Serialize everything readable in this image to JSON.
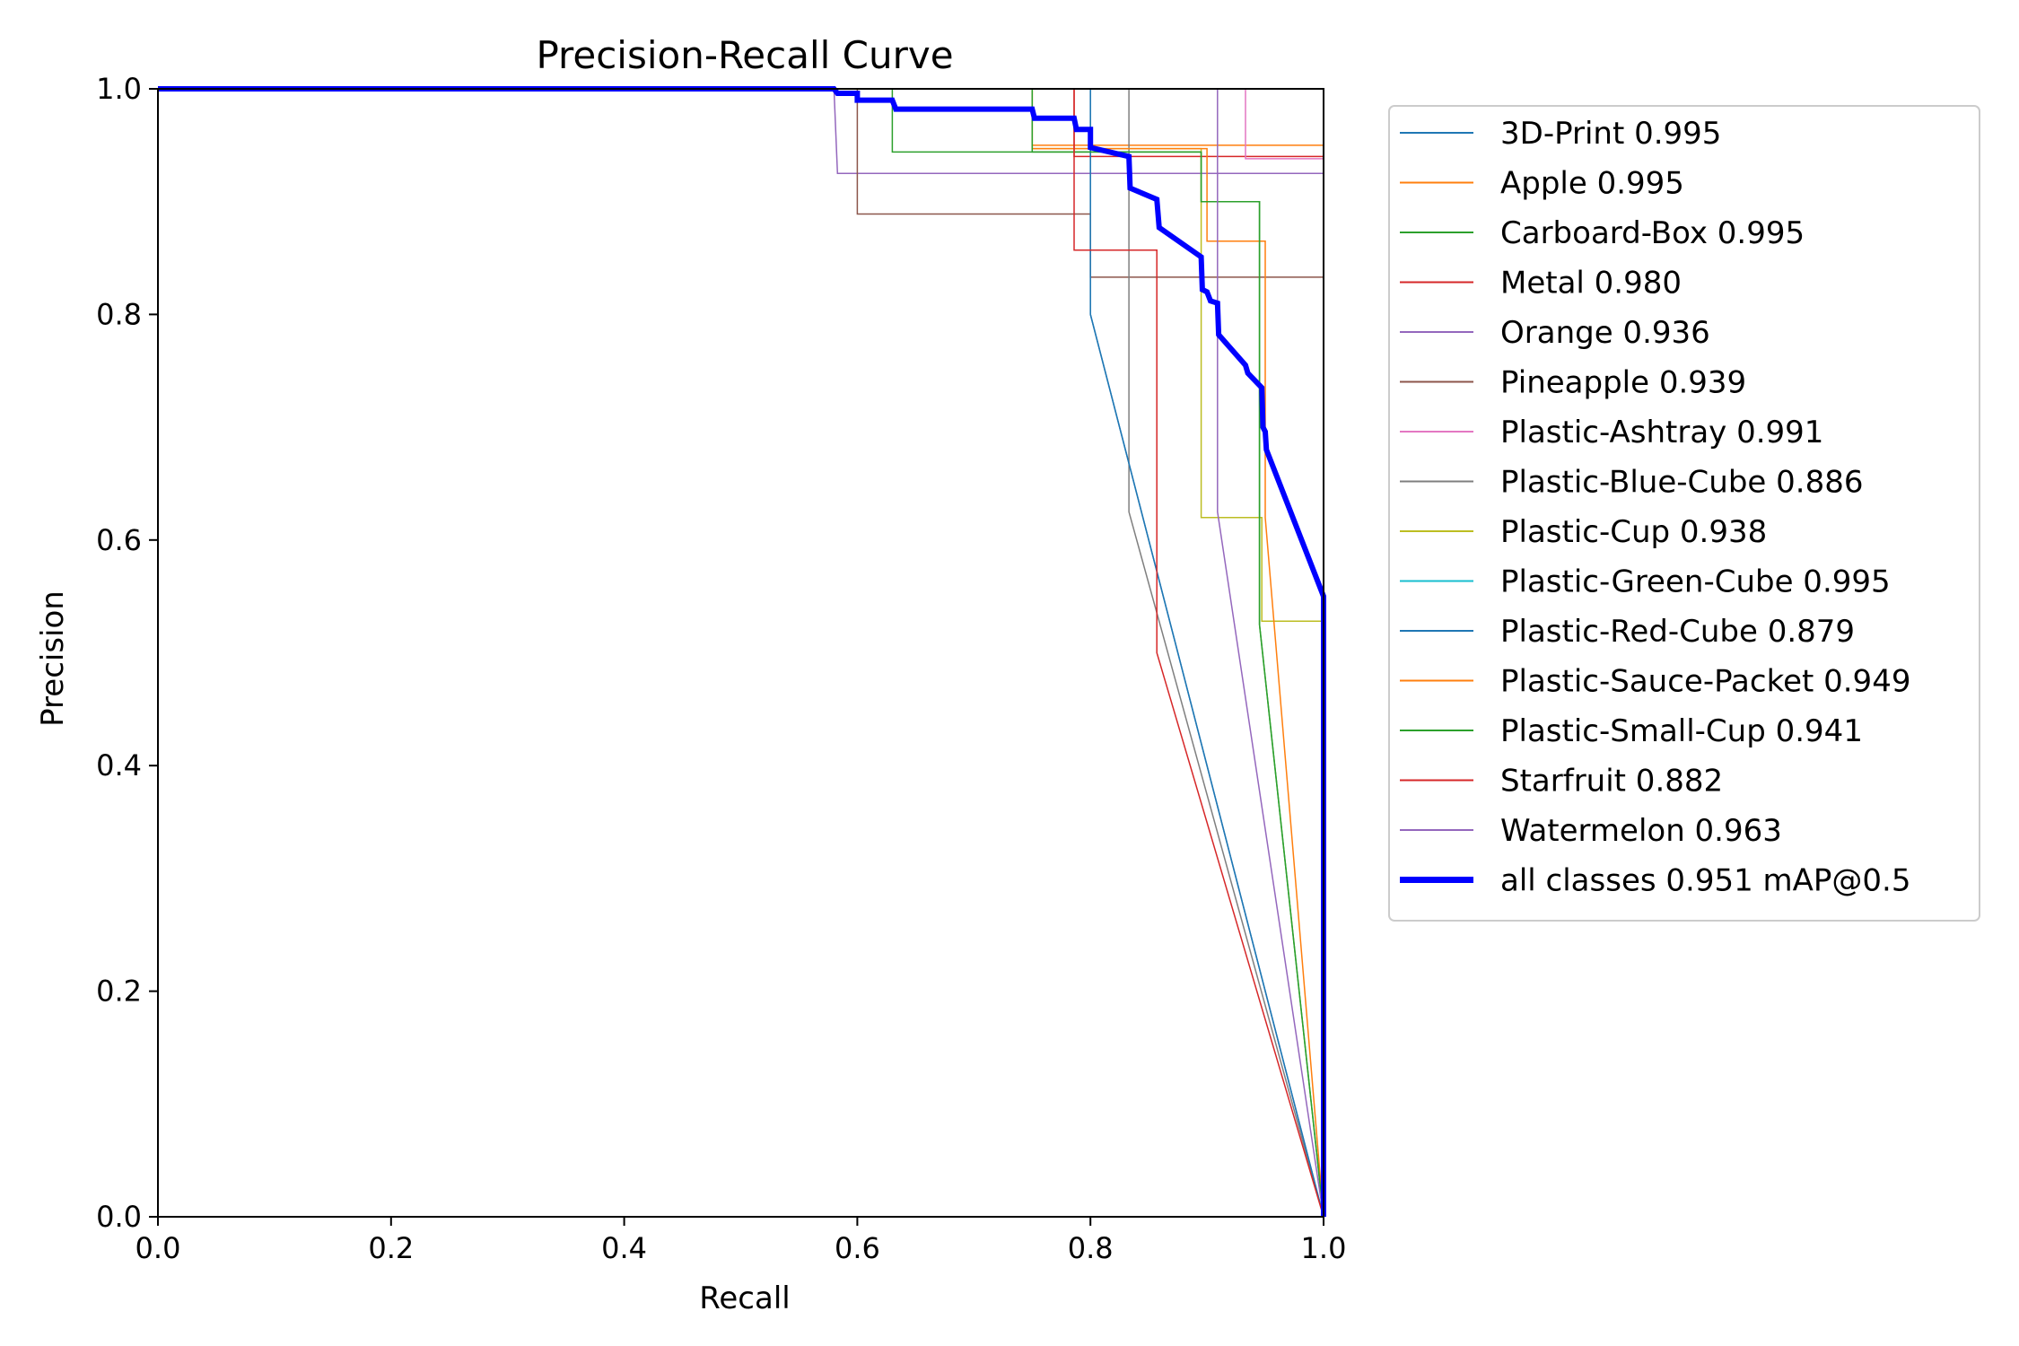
{
  "chart_data": {
    "type": "line",
    "title": "Precision-Recall Curve",
    "xlabel": "Recall",
    "ylabel": "Precision",
    "xlim": [
      0,
      1
    ],
    "ylim": [
      0,
      1
    ],
    "xticks": [
      "0.0",
      "0.2",
      "0.4",
      "0.6",
      "0.8",
      "1.0"
    ],
    "yticks": [
      "0.0",
      "0.2",
      "0.4",
      "0.6",
      "0.8",
      "1.0"
    ],
    "grid": false,
    "legend_position": "outside-right",
    "series": [
      {
        "name": "3D-Print 0.995",
        "color": "#1f77b4",
        "line_width": 1.5,
        "points": [
          [
            0,
            1
          ],
          [
            0.8,
            1
          ],
          [
            0.8,
            0.8
          ],
          [
            1.0,
            0.0
          ]
        ]
      },
      {
        "name": "Apple 0.995",
        "color": "#ff7f0e",
        "line_width": 1.5,
        "points": [
          [
            0,
            1
          ],
          [
            0.75,
            1
          ],
          [
            0.75,
            0.95
          ],
          [
            1.0,
            0.95
          ],
          [
            1.0,
            0.0
          ]
        ]
      },
      {
        "name": "Carboard-Box 0.995",
        "color": "#2ca02c",
        "line_width": 1.5,
        "points": [
          [
            0,
            1
          ],
          [
            0.63,
            1
          ],
          [
            0.63,
            0.944
          ],
          [
            0.895,
            0.944
          ],
          [
            0.895,
            0.9
          ],
          [
            0.945,
            0.9
          ],
          [
            0.945,
            0.525
          ],
          [
            1.0,
            0.0
          ]
        ]
      },
      {
        "name": "Metal 0.980",
        "color": "#d62728",
        "line_width": 1.5,
        "points": [
          [
            0,
            1
          ],
          [
            0.786,
            1
          ],
          [
            0.786,
            0.94
          ],
          [
            1.0,
            0.94
          ],
          [
            1.0,
            0.0
          ]
        ]
      },
      {
        "name": "Orange 0.936",
        "color": "#9467bd",
        "line_width": 1.5,
        "points": [
          [
            0,
            1
          ],
          [
            0.58,
            1
          ],
          [
            0.583,
            0.925
          ],
          [
            1.0,
            0.925
          ],
          [
            1.0,
            0.0
          ]
        ]
      },
      {
        "name": "Pineapple 0.939",
        "color": "#8c564b",
        "line_width": 1.5,
        "points": [
          [
            0,
            1
          ],
          [
            0.6,
            1
          ],
          [
            0.6,
            0.889
          ],
          [
            0.8,
            0.889
          ],
          [
            0.8,
            0.833
          ],
          [
            1.0,
            0.833
          ],
          [
            1.0,
            0.0
          ]
        ]
      },
      {
        "name": "Plastic-Ashtray 0.991",
        "color": "#e377c2",
        "line_width": 1.5,
        "points": [
          [
            0,
            1
          ],
          [
            0.933,
            1
          ],
          [
            0.933,
            0.938
          ],
          [
            1.0,
            0.938
          ],
          [
            1.0,
            0.0
          ]
        ]
      },
      {
        "name": "Plastic-Blue-Cube 0.886",
        "color": "#7f7f7f",
        "line_width": 1.5,
        "points": [
          [
            0,
            1
          ],
          [
            0.833,
            1
          ],
          [
            0.833,
            0.625
          ],
          [
            1.0,
            0.0
          ]
        ]
      },
      {
        "name": "Plastic-Cup 0.938",
        "color": "#bcbd22",
        "line_width": 1.5,
        "points": [
          [
            0,
            1
          ],
          [
            0.75,
            1
          ],
          [
            0.75,
            0.947
          ],
          [
            0.895,
            0.947
          ],
          [
            0.895,
            0.62
          ],
          [
            0.947,
            0.62
          ],
          [
            0.947,
            0.528
          ],
          [
            1.0,
            0.528
          ],
          [
            1.0,
            0.0
          ]
        ]
      },
      {
        "name": "Plastic-Green-Cube 0.995",
        "color": "#17becf",
        "line_width": 1.5,
        "points": [
          [
            0,
            1
          ],
          [
            1.0,
            1
          ],
          [
            1.0,
            0.0
          ]
        ]
      },
      {
        "name": "Plastic-Red-Cube 0.879",
        "color": "#1f77b4",
        "line_width": 1.5,
        "points": [
          [
            0,
            1
          ],
          [
            0.8,
            1
          ],
          [
            0.8,
            0.8
          ],
          [
            1.0,
            0.0
          ]
        ]
      },
      {
        "name": "Plastic-Sauce-Packet 0.949",
        "color": "#ff7f0e",
        "line_width": 1.5,
        "points": [
          [
            0,
            1
          ],
          [
            0.75,
            1
          ],
          [
            0.75,
            0.947
          ],
          [
            0.9,
            0.947
          ],
          [
            0.9,
            0.865
          ],
          [
            0.95,
            0.865
          ],
          [
            0.95,
            0.62
          ],
          [
            1.0,
            0.0
          ]
        ]
      },
      {
        "name": "Plastic-Small-Cup 0.941",
        "color": "#2ca02c",
        "line_width": 1.5,
        "points": [
          [
            0,
            1
          ],
          [
            0.75,
            1
          ],
          [
            0.75,
            0.944
          ],
          [
            0.895,
            0.944
          ],
          [
            0.895,
            0.9
          ],
          [
            0.945,
            0.9
          ],
          [
            0.945,
            0.525
          ],
          [
            1.0,
            0.0
          ]
        ]
      },
      {
        "name": "Starfruit 0.882",
        "color": "#d62728",
        "line_width": 1.5,
        "points": [
          [
            0,
            1
          ],
          [
            0.786,
            1
          ],
          [
            0.786,
            0.857
          ],
          [
            0.857,
            0.857
          ],
          [
            0.857,
            0.5
          ],
          [
            1.0,
            0.0
          ]
        ]
      },
      {
        "name": "Watermelon 0.963",
        "color": "#9467bd",
        "line_width": 1.5,
        "points": [
          [
            0,
            1
          ],
          [
            0.909,
            1
          ],
          [
            0.909,
            0.625
          ],
          [
            1.0,
            0.0
          ]
        ]
      },
      {
        "name": "all classes 0.951 mAP@0.5",
        "color": "#0000ff",
        "line_width": 6,
        "points": [
          [
            0,
            1
          ],
          [
            0.58,
            1
          ],
          [
            0.583,
            0.996
          ],
          [
            0.6,
            0.996
          ],
          [
            0.6,
            0.99
          ],
          [
            0.63,
            0.99
          ],
          [
            0.633,
            0.982
          ],
          [
            0.75,
            0.982
          ],
          [
            0.752,
            0.974
          ],
          [
            0.786,
            0.974
          ],
          [
            0.788,
            0.964
          ],
          [
            0.8,
            0.964
          ],
          [
            0.8,
            0.948
          ],
          [
            0.833,
            0.94
          ],
          [
            0.834,
            0.912
          ],
          [
            0.857,
            0.902
          ],
          [
            0.859,
            0.877
          ],
          [
            0.895,
            0.851
          ],
          [
            0.896,
            0.822
          ],
          [
            0.9,
            0.82
          ],
          [
            0.903,
            0.812
          ],
          [
            0.909,
            0.81
          ],
          [
            0.91,
            0.782
          ],
          [
            0.933,
            0.755
          ],
          [
            0.935,
            0.748
          ],
          [
            0.947,
            0.735
          ],
          [
            0.948,
            0.7
          ],
          [
            0.95,
            0.696
          ],
          [
            0.951,
            0.68
          ],
          [
            1.0,
            0.55
          ],
          [
            1.0,
            0.0
          ]
        ]
      }
    ]
  }
}
